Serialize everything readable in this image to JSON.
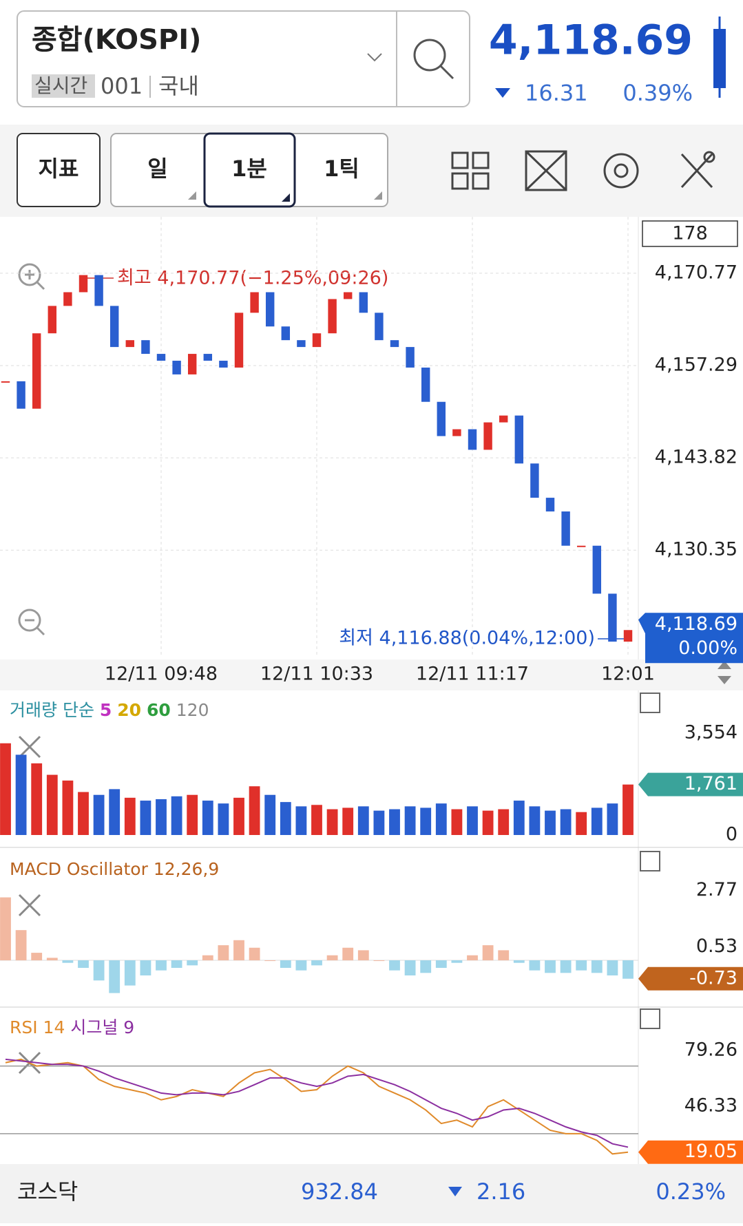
{
  "header": {
    "title": "종합(KOSPI)",
    "tag": "실시간",
    "code": "001",
    "market": "국내",
    "price": "4,118.69",
    "change": "16.31",
    "change_pct": "0.39%"
  },
  "toolbar": {
    "indicator": "지표",
    "period": "일",
    "interval": "1분",
    "tick": "1틱"
  },
  "chart_data": [
    {
      "type": "candlestick",
      "count": "178",
      "high_label": "최고 4,170.77(−1.25%,09:26)",
      "low_label": "최저 4,116.88(0.04%,12:00)",
      "values": [
        4155,
        4151,
        4162,
        4166,
        4168,
        4170.5,
        4166,
        4160,
        4161,
        4159,
        4158,
        4156,
        4159,
        4158,
        4157,
        4165,
        4168,
        4163,
        4161,
        4160,
        4162,
        4167,
        4168,
        4165,
        4161,
        4160,
        4157,
        4152,
        4147,
        4148,
        4145,
        4149,
        4150,
        4143,
        4138,
        4136,
        4131,
        4131,
        4124,
        4117,
        4118.69
      ],
      "up_color": "#e0302a",
      "down_color": "#2a5fd0",
      "xlim": [
        0,
        40
      ],
      "xticks": [
        {
          "value": 10,
          "label": "12/11 09:48"
        },
        {
          "value": 20,
          "label": "12/11 10:33"
        },
        {
          "value": 30,
          "label": "12/11 11:17"
        },
        {
          "value": 40,
          "label": "12:01"
        }
      ],
      "ylim": [
        4115,
        4179
      ],
      "yticks": [
        {
          "value": 4170.77,
          "label": "4,170.77"
        },
        {
          "value": 4157.29,
          "label": "4,157.29"
        },
        {
          "value": 4143.82,
          "label": "4,143.82"
        },
        {
          "value": 4130.35,
          "label": "4,130.35"
        }
      ],
      "current": {
        "value": 4118.69,
        "label": "4,118.69"
      },
      "current_change": "0.00%",
      "current_color": "#1f5fcf",
      "grid": true
    },
    {
      "type": "bar",
      "title": "거래량 단순",
      "ma_legend": [
        {
          "name": "5",
          "color": "#c032c0"
        },
        {
          "name": "20",
          "color": "#d4a800"
        },
        {
          "name": "60",
          "color": "#2e9e3e"
        },
        {
          "name": "120",
          "color": "#888888"
        }
      ],
      "title_color": "#2b8fa0",
      "values": [
        3200,
        2800,
        2500,
        2100,
        1900,
        1500,
        1400,
        1600,
        1300,
        1200,
        1250,
        1350,
        1400,
        1200,
        1100,
        1300,
        1700,
        1400,
        1150,
        1000,
        1050,
        900,
        950,
        1000,
        850,
        900,
        1000,
        950,
        1100,
        900,
        1000,
        850,
        900,
        1200,
        1000,
        850,
        900,
        800,
        950,
        1100,
        1761
      ],
      "ylim": [
        -408,
        5043
      ],
      "yticks": [
        {
          "value": 3554,
          "label": "3,554"
        },
        0
      ],
      "current": {
        "value": 1761,
        "label": "1,761"
      },
      "current_color": "#3aa39a"
    },
    {
      "type": "histogram",
      "title": "MACD Oscillator 12,26,9",
      "title_color": "#b8621e",
      "values": [
        2.5,
        1.2,
        0.3,
        0.1,
        -0.1,
        -0.3,
        -0.8,
        -1.3,
        -1.0,
        -0.6,
        -0.4,
        -0.3,
        -0.2,
        0.2,
        0.6,
        0.8,
        0.5,
        0.0,
        -0.3,
        -0.4,
        -0.2,
        0.2,
        0.5,
        0.4,
        0.0,
        -0.4,
        -0.6,
        -0.5,
        -0.3,
        -0.1,
        0.2,
        0.6,
        0.4,
        -0.1,
        -0.4,
        -0.5,
        -0.5,
        -0.4,
        -0.5,
        -0.6,
        -0.73
      ],
      "positive_color": "#f2b8a0",
      "negative_color": "#9fd6ea",
      "ylim": [
        -1.83,
        4.43
      ],
      "yticks": [
        2.77,
        0.53
      ],
      "current": -0.73,
      "current_color": "#c0641e"
    },
    {
      "type": "line",
      "title": "RSI 14",
      "signal_title": "시그널 9",
      "series": [
        {
          "name": "RSI 14",
          "color": "#e08a2a",
          "values": [
            72,
            74,
            70,
            71,
            72,
            70,
            62,
            58,
            56,
            54,
            50,
            52,
            56,
            54,
            52,
            60,
            66,
            68,
            62,
            55,
            56,
            64,
            70,
            66,
            58,
            54,
            50,
            44,
            36,
            38,
            34,
            46,
            50,
            44,
            38,
            32,
            30,
            30,
            26,
            18,
            19.05
          ]
        },
        {
          "name": "시그널 9",
          "color": "#8b2fa0",
          "values": [
            74,
            73,
            72,
            71,
            71,
            70,
            67,
            63,
            60,
            57,
            54,
            53,
            54,
            54,
            53,
            55,
            59,
            63,
            63,
            60,
            58,
            60,
            64,
            65,
            62,
            59,
            55,
            50,
            45,
            42,
            38,
            40,
            44,
            45,
            42,
            38,
            34,
            31,
            29,
            24,
            22
          ]
        }
      ],
      "levels": [
        70,
        30
      ],
      "ylim": [
        12,
        104.5
      ],
      "yticks": [
        79.26,
        46.33
      ],
      "current": 19.05,
      "current_color": "#ff6a13"
    }
  ],
  "footer": {
    "name": "코스닥",
    "price": "932.84",
    "change": "2.16",
    "change_pct": "0.23%"
  }
}
